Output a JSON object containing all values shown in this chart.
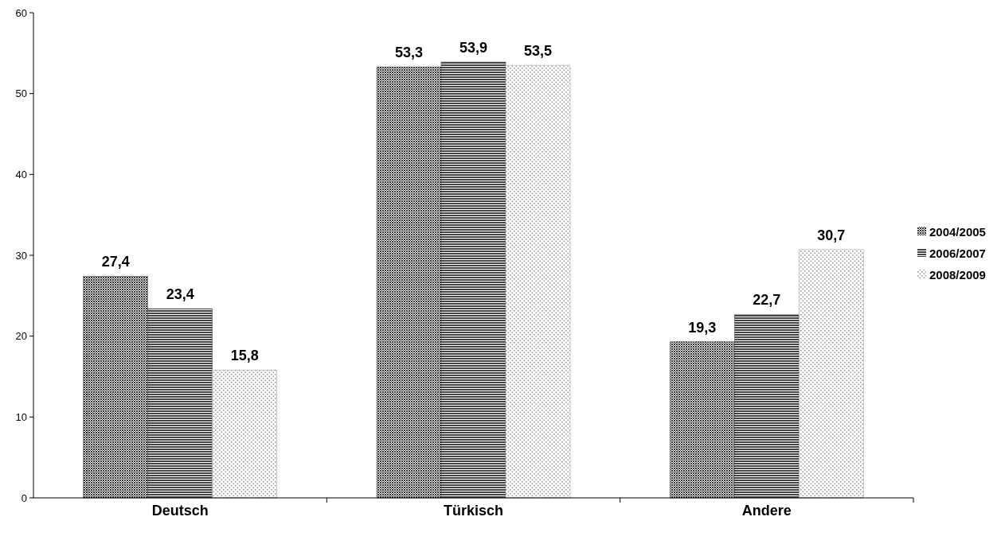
{
  "chart_data": {
    "type": "bar",
    "categories": [
      "Deutsch",
      "Türkisch",
      "Andere"
    ],
    "series": [
      {
        "name": "2004/2005",
        "color": "#333333",
        "values": [
          27.4,
          53.3,
          19.3
        ],
        "value_labels": [
          "27,4",
          "53,3",
          "19,3"
        ]
      },
      {
        "name": "2006/2007",
        "color": "#444444",
        "values": [
          23.4,
          53.9,
          22.7
        ],
        "value_labels": [
          "23,4",
          "53,9",
          "22,7"
        ]
      },
      {
        "name": "2008/2009",
        "color": "#999999",
        "values": [
          15.8,
          53.5,
          30.7
        ],
        "value_labels": [
          "15,8",
          "53,5",
          "30,7"
        ]
      }
    ],
    "ylim": [
      0,
      60
    ],
    "yticks": [
      0,
      10,
      20,
      30,
      40,
      50,
      60
    ],
    "grid": false,
    "legend": "right"
  }
}
